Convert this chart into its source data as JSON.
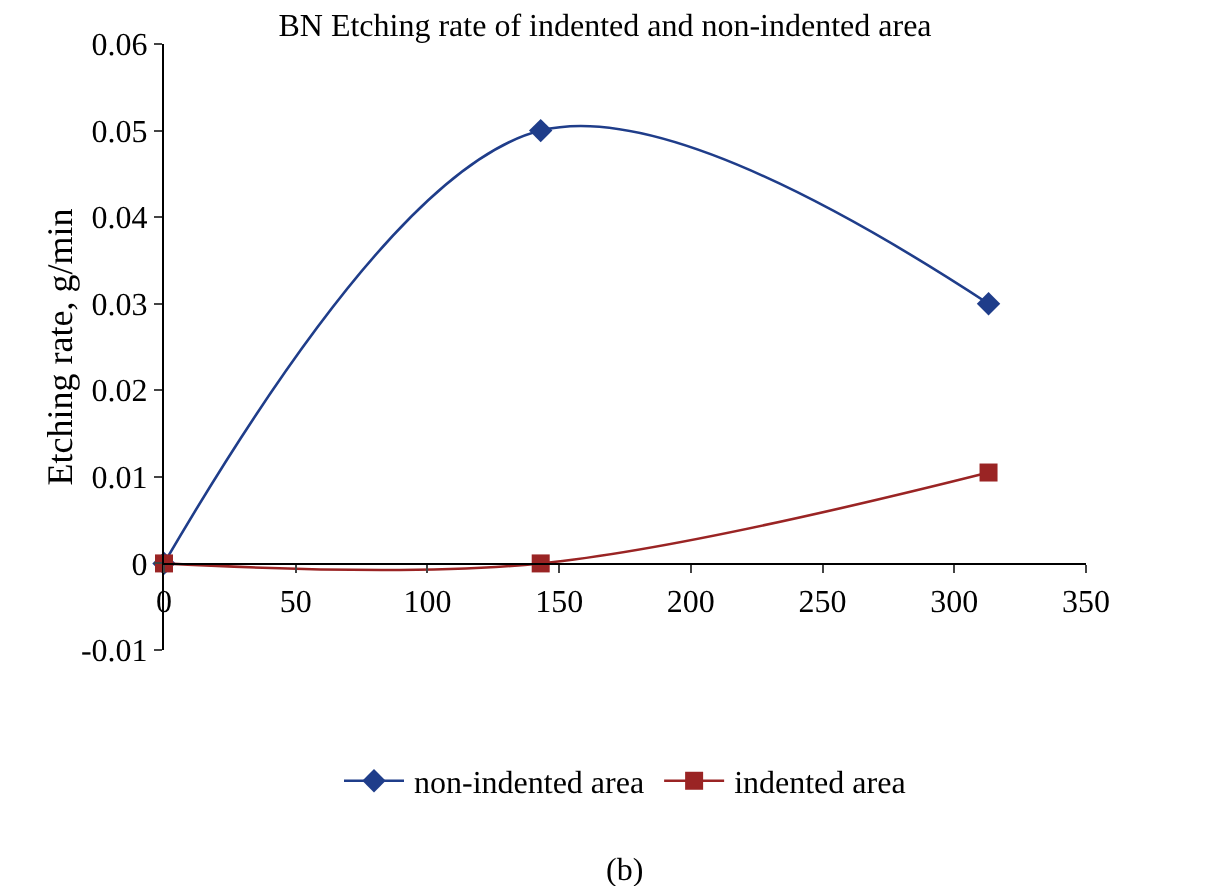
{
  "chart_data": {
    "type": "line",
    "title": "BN Etching rate of indented and non-indented area",
    "ylabel": "Etching rate, g/min",
    "x": [
      0,
      143,
      313
    ],
    "series": [
      {
        "name": "non-indented area",
        "color": "#1f3d8a",
        "values": [
          0,
          0.05,
          0.03
        ],
        "marker": "diamond"
      },
      {
        "name": "indented area",
        "color": "#9a2424",
        "values": [
          0,
          0,
          0.0105
        ],
        "marker": "square"
      }
    ],
    "xlim": [
      0,
      350
    ],
    "xticks": [
      0,
      50,
      100,
      150,
      200,
      250,
      300,
      350
    ],
    "ylim": [
      -0.01,
      0.06
    ],
    "yticks": [
      -0.01,
      0,
      0.01,
      0.02,
      0.03,
      0.04,
      0.05,
      0.06
    ],
    "grid": false,
    "legend": "bottom",
    "line_style": "solid",
    "annotations": [
      "(b)"
    ]
  }
}
